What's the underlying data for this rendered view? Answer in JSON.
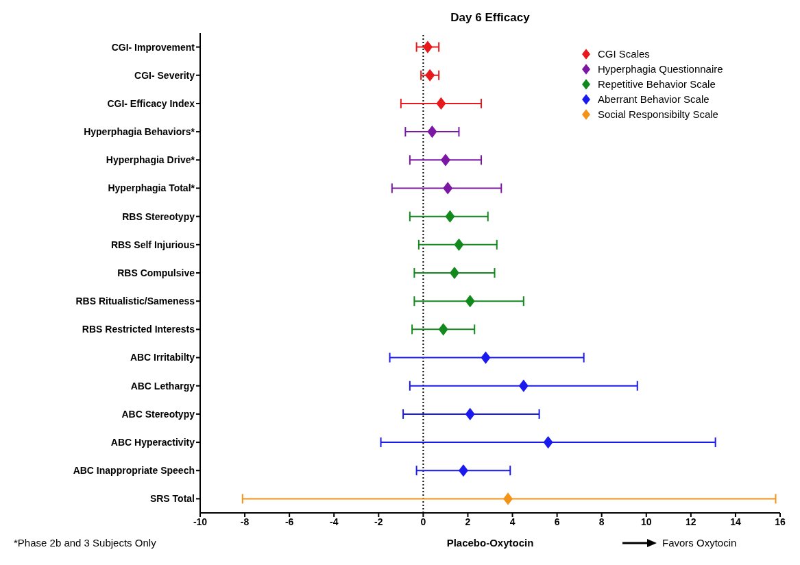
{
  "chart_data": {
    "type": "scatter",
    "title": "Day 6 Efficacy",
    "xlabel": "Placebo-Oxytocin",
    "orientation": "horizontal",
    "categories": [
      "CGI- Improvement",
      "CGI- Severity",
      "CGI- Efficacy Index",
      "Hyperphagia Behaviors*",
      "Hyperphagia Drive*",
      "Hyperphagia Total*",
      "RBS Stereotypy",
      "RBS Self Injurious",
      "RBS Compulsive",
      "RBS Ritualistic/Sameness",
      "RBS Restricted Interests",
      "ABC Irritabilty",
      "ABC Lethargy",
      "ABC Stereotypy",
      "ABC Hyperactivity",
      "ABC Inappropriate Speech",
      "SRS Total"
    ],
    "series": [
      {
        "name": "CGI Scales",
        "color": "#e8191c",
        "values": [
          0.2,
          0.3,
          0.8,
          null,
          null,
          null,
          null,
          null,
          null,
          null,
          null,
          null,
          null,
          null,
          null,
          null,
          null
        ],
        "errors": [
          [
            -0.3,
            0.7
          ],
          [
            -0.1,
            0.7
          ],
          [
            -1.0,
            2.6
          ],
          null,
          null,
          null,
          null,
          null,
          null,
          null,
          null,
          null,
          null,
          null,
          null,
          null,
          null
        ]
      },
      {
        "name": "Hyperphagia Questionnaire",
        "color": "#7b17a3",
        "values": [
          null,
          null,
          null,
          0.4,
          1.0,
          1.1,
          null,
          null,
          null,
          null,
          null,
          null,
          null,
          null,
          null,
          null,
          null
        ],
        "errors": [
          null,
          null,
          null,
          [
            -0.8,
            1.6
          ],
          [
            -0.6,
            2.6
          ],
          [
            -1.4,
            3.5
          ],
          null,
          null,
          null,
          null,
          null,
          null,
          null,
          null,
          null,
          null,
          null
        ]
      },
      {
        "name": "Repetitive Behavior Scale",
        "color": "#11891d",
        "values": [
          null,
          null,
          null,
          null,
          null,
          null,
          1.2,
          1.6,
          1.4,
          2.1,
          0.9,
          null,
          null,
          null,
          null,
          null,
          null
        ],
        "errors": [
          null,
          null,
          null,
          null,
          null,
          null,
          [
            -0.6,
            2.9
          ],
          [
            -0.2,
            3.3
          ],
          [
            -0.4,
            3.2
          ],
          [
            -0.4,
            4.5
          ],
          [
            -0.5,
            2.3
          ],
          null,
          null,
          null,
          null,
          null,
          null
        ]
      },
      {
        "name": "Aberrant Behavior Scale",
        "color": "#1a1aef",
        "values": [
          null,
          null,
          null,
          null,
          null,
          null,
          null,
          null,
          null,
          null,
          null,
          2.8,
          4.5,
          2.1,
          5.6,
          1.8,
          null
        ],
        "errors": [
          null,
          null,
          null,
          null,
          null,
          null,
          null,
          null,
          null,
          null,
          null,
          [
            -1.5,
            7.2
          ],
          [
            -0.6,
            9.6
          ],
          [
            -0.9,
            5.2
          ],
          [
            -1.9,
            13.1
          ],
          [
            -0.3,
            3.9
          ],
          null
        ]
      },
      {
        "name": "Social Responsibilty Scale",
        "color": "#f39419",
        "values": [
          null,
          null,
          null,
          null,
          null,
          null,
          null,
          null,
          null,
          null,
          null,
          null,
          null,
          null,
          null,
          null,
          3.8
        ],
        "errors": [
          null,
          null,
          null,
          null,
          null,
          null,
          null,
          null,
          null,
          null,
          null,
          null,
          null,
          null,
          null,
          null,
          [
            -8.1,
            15.8
          ]
        ]
      }
    ],
    "xlim": [
      -10,
      16
    ],
    "xticks": [
      -10,
      -8,
      -6,
      -4,
      -2,
      0,
      2,
      4,
      6,
      8,
      10,
      12,
      14,
      16
    ],
    "ref_lines": [
      {
        "axis": "x",
        "value": 0,
        "line_style": "dotted",
        "color": "#000000"
      }
    ],
    "marker": "diamond",
    "legend": "top right",
    "grid": false,
    "annotations": [
      "*Phase 2b and 3 Subjects Only",
      "Favors Oxytocin"
    ]
  }
}
